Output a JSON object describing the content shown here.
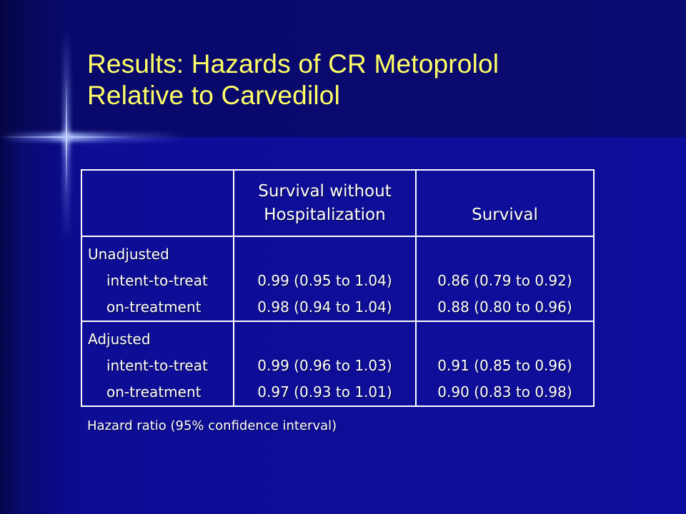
{
  "slide": {
    "title_line1": "Results: Hazards of CR Metoprolol",
    "title_line2": "Relative to Carvedilol",
    "title_color": "#ffff66",
    "background_color": "#0e0e9c"
  },
  "table": {
    "headers": {
      "col1": "",
      "col2_line1": "Survival without",
      "col2_line2": "Hospitalization",
      "col3": "Survival"
    },
    "rows": [
      {
        "group": "Unadjusted",
        "sub1": "intent-to-treat",
        "sub2": "on-treatment",
        "survival_without_hosp_1": "0.99 (0.95 to 1.04)",
        "survival_without_hosp_2": "0.98 (0.94 to 1.04)",
        "survival_1": "0.86 (0.79 to 0.92)",
        "survival_2": "0.88 (0.80 to 0.96)"
      },
      {
        "group": "Adjusted",
        "sub1": "intent-to-treat",
        "sub2": "on-treatment",
        "survival_without_hosp_1": "0.99 (0.96 to 1.03)",
        "survival_without_hosp_2": "0.97 (0.93 to 1.01)",
        "survival_1": "0.91 (0.85 to 0.96)",
        "survival_2": "0.90 (0.83 to 0.98)"
      }
    ]
  },
  "footnote": "Hazard ratio (95% confidence interval)"
}
